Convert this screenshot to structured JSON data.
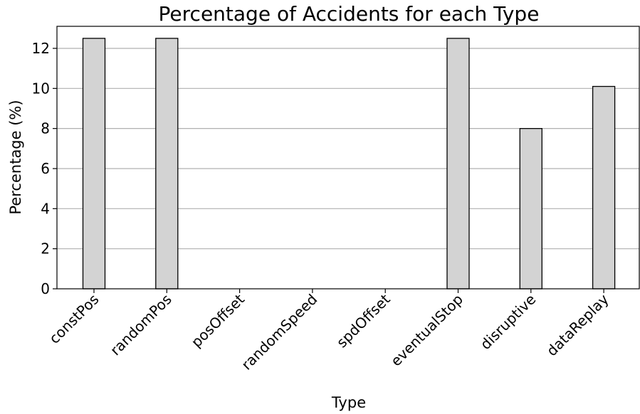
{
  "chart_data": {
    "type": "bar",
    "title": "Percentage of Accidents for each Type",
    "xlabel": "Type",
    "ylabel": "Percentage (%)",
    "categories": [
      "constPos",
      "randomPos",
      "posOffset",
      "randomSpeed",
      "spdOffset",
      "eventualStop",
      "disruptive",
      "dataReplay"
    ],
    "values": [
      12.5,
      12.5,
      0,
      0,
      0,
      12.5,
      8.0,
      10.1
    ],
    "ylim": [
      0,
      13.1
    ],
    "yticks": [
      0,
      2,
      4,
      6,
      8,
      10,
      12
    ],
    "grid": "horizontal",
    "bar_color": "#d3d3d3",
    "edge_color": "#000000"
  }
}
